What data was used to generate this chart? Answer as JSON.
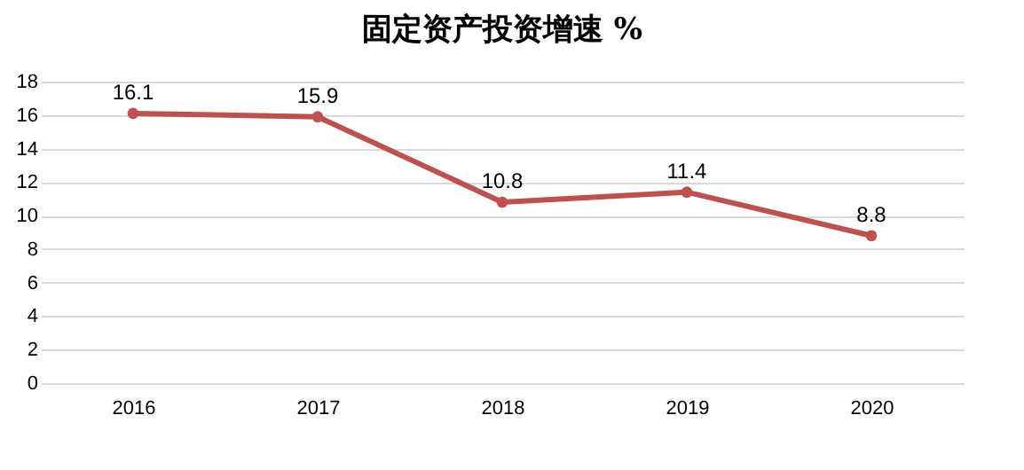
{
  "chart_data": {
    "type": "line",
    "title": "固定资产投资增速 %",
    "categories": [
      "2016",
      "2017",
      "2018",
      "2019",
      "2020"
    ],
    "series": [
      {
        "color": "#c0504d",
        "values": [
          16.1,
          15.9,
          10.8,
          11.4,
          8.8
        ]
      }
    ],
    "ylim": [
      0,
      18
    ],
    "yticks": [
      0,
      2,
      4,
      6,
      8,
      10,
      12,
      14,
      16,
      18
    ],
    "grid": "y",
    "marker": "circle",
    "line_style": "solid",
    "data_labels": true,
    "legend": false
  }
}
